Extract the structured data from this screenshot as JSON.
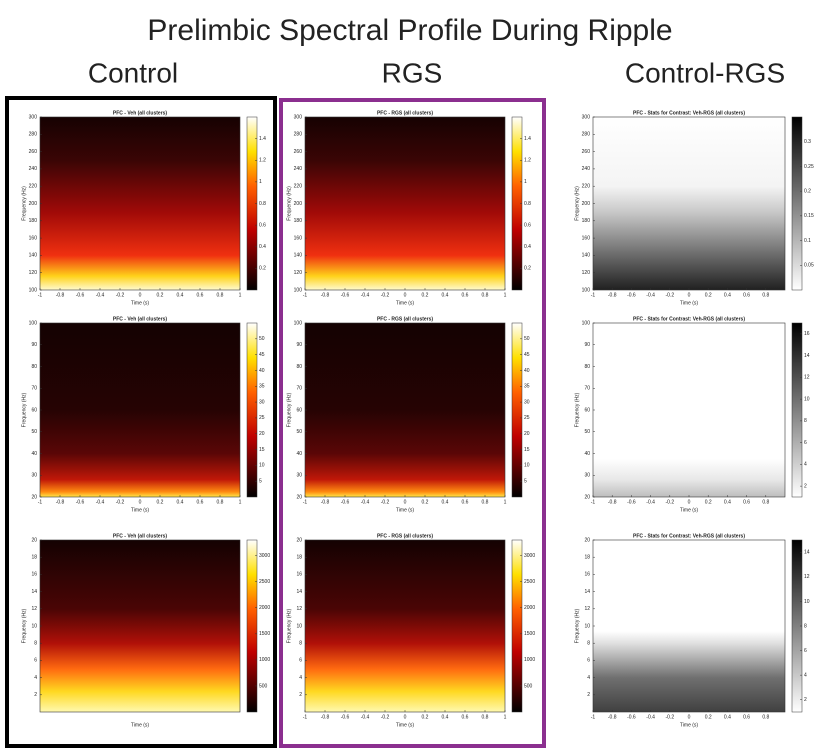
{
  "title": "Prelimbic Spectral Profile During Ripple",
  "columns": [
    "Control",
    "RGS",
    "Control-RGS"
  ],
  "chart_data": [
    {
      "type": "heatmap",
      "title": "PFC - Veh (all clusters)",
      "xlabel": "Time (s)",
      "ylabel": "Frequency (Hz)",
      "colormap": "hot",
      "xlim": [
        -1,
        1
      ],
      "xticks": [
        -1,
        -0.8,
        -0.6,
        -0.4,
        -0.2,
        0,
        0.2,
        0.4,
        0.6,
        0.8,
        1
      ],
      "ylim": [
        100,
        300
      ],
      "yticks": [
        100,
        120,
        140,
        160,
        180,
        200,
        220,
        240,
        260,
        280,
        300
      ],
      "clim": [
        0,
        1.6
      ],
      "cticks": [
        0.2,
        0.4,
        0.6,
        0.8,
        1,
        1.2,
        1.4
      ]
    },
    {
      "type": "heatmap",
      "title": "PFC - RGS (all clusters)",
      "xlabel": "Time (s)",
      "ylabel": "Frequency (Hz)",
      "colormap": "hot",
      "xlim": [
        -1,
        1
      ],
      "xticks": [
        -1,
        -0.8,
        -0.6,
        -0.4,
        -0.2,
        0,
        0.2,
        0.4,
        0.6,
        0.8,
        1
      ],
      "ylim": [
        100,
        300
      ],
      "yticks": [
        100,
        120,
        140,
        160,
        180,
        200,
        220,
        240,
        260,
        280,
        300
      ],
      "clim": [
        0,
        1.6
      ],
      "cticks": [
        0.2,
        0.4,
        0.6,
        0.8,
        1,
        1.2,
        1.4
      ]
    },
    {
      "type": "heatmap",
      "title": "PFC - Stats for Contrast: Veh-RGS (all clusters)",
      "xlabel": "Time (s)",
      "ylabel": "Frequency (Hz)",
      "colormap": "gray",
      "xlim": [
        -1,
        1
      ],
      "xticks": [
        -1,
        -0.8,
        -0.6,
        -0.4,
        -0.2,
        0,
        0.2,
        0.4,
        0.6,
        0.8
      ],
      "ylim": [
        100,
        300
      ],
      "yticks": [
        100,
        120,
        140,
        160,
        180,
        200,
        220,
        240,
        260,
        280,
        300
      ],
      "clim": [
        0,
        0.35
      ],
      "cticks": [
        0.05,
        0.1,
        0.15,
        0.2,
        0.25,
        0.3
      ]
    },
    {
      "type": "heatmap",
      "title": "PFC - Veh (all clusters)",
      "xlabel": "Time (s)",
      "ylabel": "Frequency (Hz)",
      "colormap": "hot",
      "xlim": [
        -1,
        1
      ],
      "xticks": [
        -1,
        -0.8,
        -0.6,
        -0.4,
        -0.2,
        0,
        0.2,
        0.4,
        0.6,
        0.8,
        1
      ],
      "ylim": [
        20,
        100
      ],
      "yticks": [
        20,
        30,
        40,
        50,
        60,
        70,
        80,
        90,
        100
      ],
      "clim": [
        0,
        55
      ],
      "cticks": [
        5,
        10,
        15,
        20,
        25,
        30,
        35,
        40,
        45,
        50
      ]
    },
    {
      "type": "heatmap",
      "title": "PFC - RGS (all clusters)",
      "xlabel": "Time (s)",
      "ylabel": "Frequency (Hz)",
      "colormap": "hot",
      "xlim": [
        -1,
        1
      ],
      "xticks": [
        -1,
        -0.8,
        -0.6,
        -0.4,
        -0.2,
        0,
        0.2,
        0.4,
        0.6,
        0.8,
        1
      ],
      "ylim": [
        20,
        100
      ],
      "yticks": [
        20,
        30,
        40,
        50,
        60,
        70,
        80,
        90,
        100
      ],
      "clim": [
        0,
        55
      ],
      "cticks": [
        5,
        10,
        15,
        20,
        25,
        30,
        35,
        40,
        45,
        50
      ]
    },
    {
      "type": "heatmap",
      "title": "PFC - Stats for Contrast: Veh-RGS (all clusters)",
      "xlabel": "Time (s)",
      "ylabel": "Frequency (Hz)",
      "colormap": "gray",
      "xlim": [
        -1,
        1
      ],
      "xticks": [
        -1,
        -0.8,
        -0.6,
        -0.4,
        -0.2,
        0,
        0.2,
        0.4,
        0.6,
        0.8
      ],
      "ylim": [
        20,
        100
      ],
      "yticks": [
        20,
        30,
        40,
        50,
        60,
        70,
        80,
        90,
        100
      ],
      "clim": [
        1,
        17
      ],
      "cticks": [
        2,
        4,
        6,
        8,
        10,
        12,
        14,
        16
      ]
    },
    {
      "type": "heatmap",
      "title": "PFC - Veh (all clusters)",
      "xlabel": "Time (s)",
      "ylabel": "Frequency (Hz)",
      "colormap": "hot",
      "xlim": [
        0,
        20
      ],
      "xticks": [],
      "ylim": [
        0,
        20
      ],
      "yticks": [
        2,
        4,
        6,
        8,
        10,
        12,
        14,
        16,
        18,
        20
      ],
      "clim": [
        0,
        3300
      ],
      "cticks": [
        500,
        1000,
        1500,
        2000,
        2500,
        3000
      ]
    },
    {
      "type": "heatmap",
      "title": "PFC - RGS (all clusters)",
      "xlabel": "Time (s)",
      "ylabel": "Frequency (Hz)",
      "colormap": "hot",
      "xlim": [
        -1,
        1
      ],
      "xticks": [
        -1,
        -0.8,
        -0.6,
        -0.4,
        -0.2,
        0,
        0.2,
        0.4,
        0.6,
        0.8,
        1
      ],
      "ylim": [
        0,
        20
      ],
      "yticks": [
        2,
        4,
        6,
        8,
        10,
        12,
        14,
        16,
        18,
        20
      ],
      "clim": [
        0,
        3300
      ],
      "cticks": [
        500,
        1000,
        1500,
        2000,
        2500,
        3000
      ]
    },
    {
      "type": "heatmap",
      "title": "PFC - Stats for Contrast: Veh-RGS (all clusters)",
      "xlabel": "Time (s)",
      "ylabel": "Frequency (Hz)",
      "colormap": "gray",
      "xlim": [
        -1,
        1
      ],
      "xticks": [
        -1,
        -0.8,
        -0.6,
        -0.4,
        -0.2,
        0,
        0.2,
        0.4,
        0.6,
        0.8
      ],
      "ylim": [
        0,
        20
      ],
      "yticks": [
        2,
        4,
        6,
        8,
        10,
        12,
        14,
        16,
        18,
        20
      ],
      "clim": [
        1,
        15
      ],
      "cticks": [
        2,
        4,
        6,
        8,
        10,
        12,
        14
      ]
    }
  ]
}
